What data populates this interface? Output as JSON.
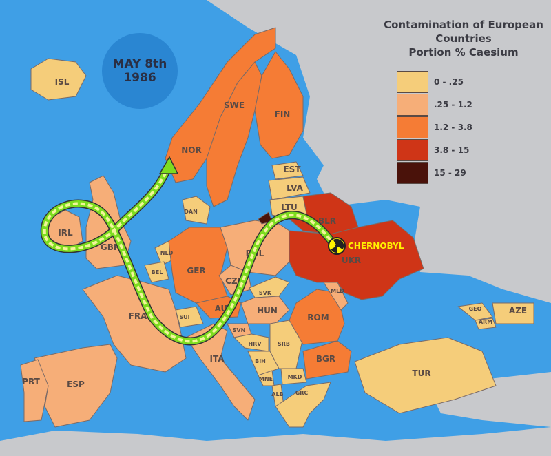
{
  "date_badge": {
    "line1": "MAY 8th",
    "line2": "1986"
  },
  "legend": {
    "title_lines": [
      "Contamination of European",
      "Countries",
      "Portion % Caesium"
    ],
    "classes": [
      {
        "label": "0 - .25",
        "color": "#f5cd7a"
      },
      {
        "label": ".25 - 1.2",
        "color": "#f6ae78"
      },
      {
        "label": "1.2 - 3.8",
        "color": "#f57c35"
      },
      {
        "label": "3.8 - 15",
        "color": "#cf3517"
      },
      {
        "label": "15 - 29",
        "color": "#4a120a"
      }
    ]
  },
  "colors": {
    "sea": "#3f9fe6",
    "other_land": "#c8c9cc",
    "plume": "#7ddc1f",
    "chernobyl_label": "#fff200"
  },
  "source": {
    "label": "CHERNOBYL",
    "icon": "radiation-icon"
  },
  "countries": [
    {
      "code": "ISL",
      "class": 0
    },
    {
      "code": "NOR",
      "class": 2
    },
    {
      "code": "SWE",
      "class": 2
    },
    {
      "code": "FIN",
      "class": 2
    },
    {
      "code": "EST",
      "class": 0
    },
    {
      "code": "LVA",
      "class": 0
    },
    {
      "code": "LTU",
      "class": 0
    },
    {
      "code": "BLR",
      "class": 3
    },
    {
      "code": "UKR",
      "class": 3
    },
    {
      "code": "IRL",
      "class": 1
    },
    {
      "code": "GBR",
      "class": 1
    },
    {
      "code": "DAN",
      "class": 0
    },
    {
      "code": "NLD",
      "class": 0
    },
    {
      "code": "BEL",
      "class": 0
    },
    {
      "code": "GER",
      "class": 2
    },
    {
      "code": "POL",
      "class": 1
    },
    {
      "code": "CZE",
      "class": 1
    },
    {
      "code": "AUT",
      "class": 2
    },
    {
      "code": "SVK",
      "class": 0
    },
    {
      "code": "HUN",
      "class": 1
    },
    {
      "code": "SUI",
      "class": 0
    },
    {
      "code": "FRA",
      "class": 1
    },
    {
      "code": "ITA",
      "class": 1
    },
    {
      "code": "SVN",
      "class": 1
    },
    {
      "code": "HRV",
      "class": 0
    },
    {
      "code": "BIH",
      "class": 0
    },
    {
      "code": "SRB",
      "class": 0
    },
    {
      "code": "MNE",
      "class": 0
    },
    {
      "code": "ALB",
      "class": 0
    },
    {
      "code": "MKD",
      "class": 0
    },
    {
      "code": "GRC",
      "class": 0
    },
    {
      "code": "BGR",
      "class": 2
    },
    {
      "code": "ROM",
      "class": 2
    },
    {
      "code": "MLD",
      "class": 1
    },
    {
      "code": "TUR",
      "class": 0
    },
    {
      "code": "GEO",
      "class": 0
    },
    {
      "code": "ARM",
      "class": 0
    },
    {
      "code": "AZE",
      "class": 0
    },
    {
      "code": "ESP",
      "class": 1
    },
    {
      "code": "PRT",
      "class": 1
    },
    {
      "code": "",
      "class": 4
    }
  ]
}
